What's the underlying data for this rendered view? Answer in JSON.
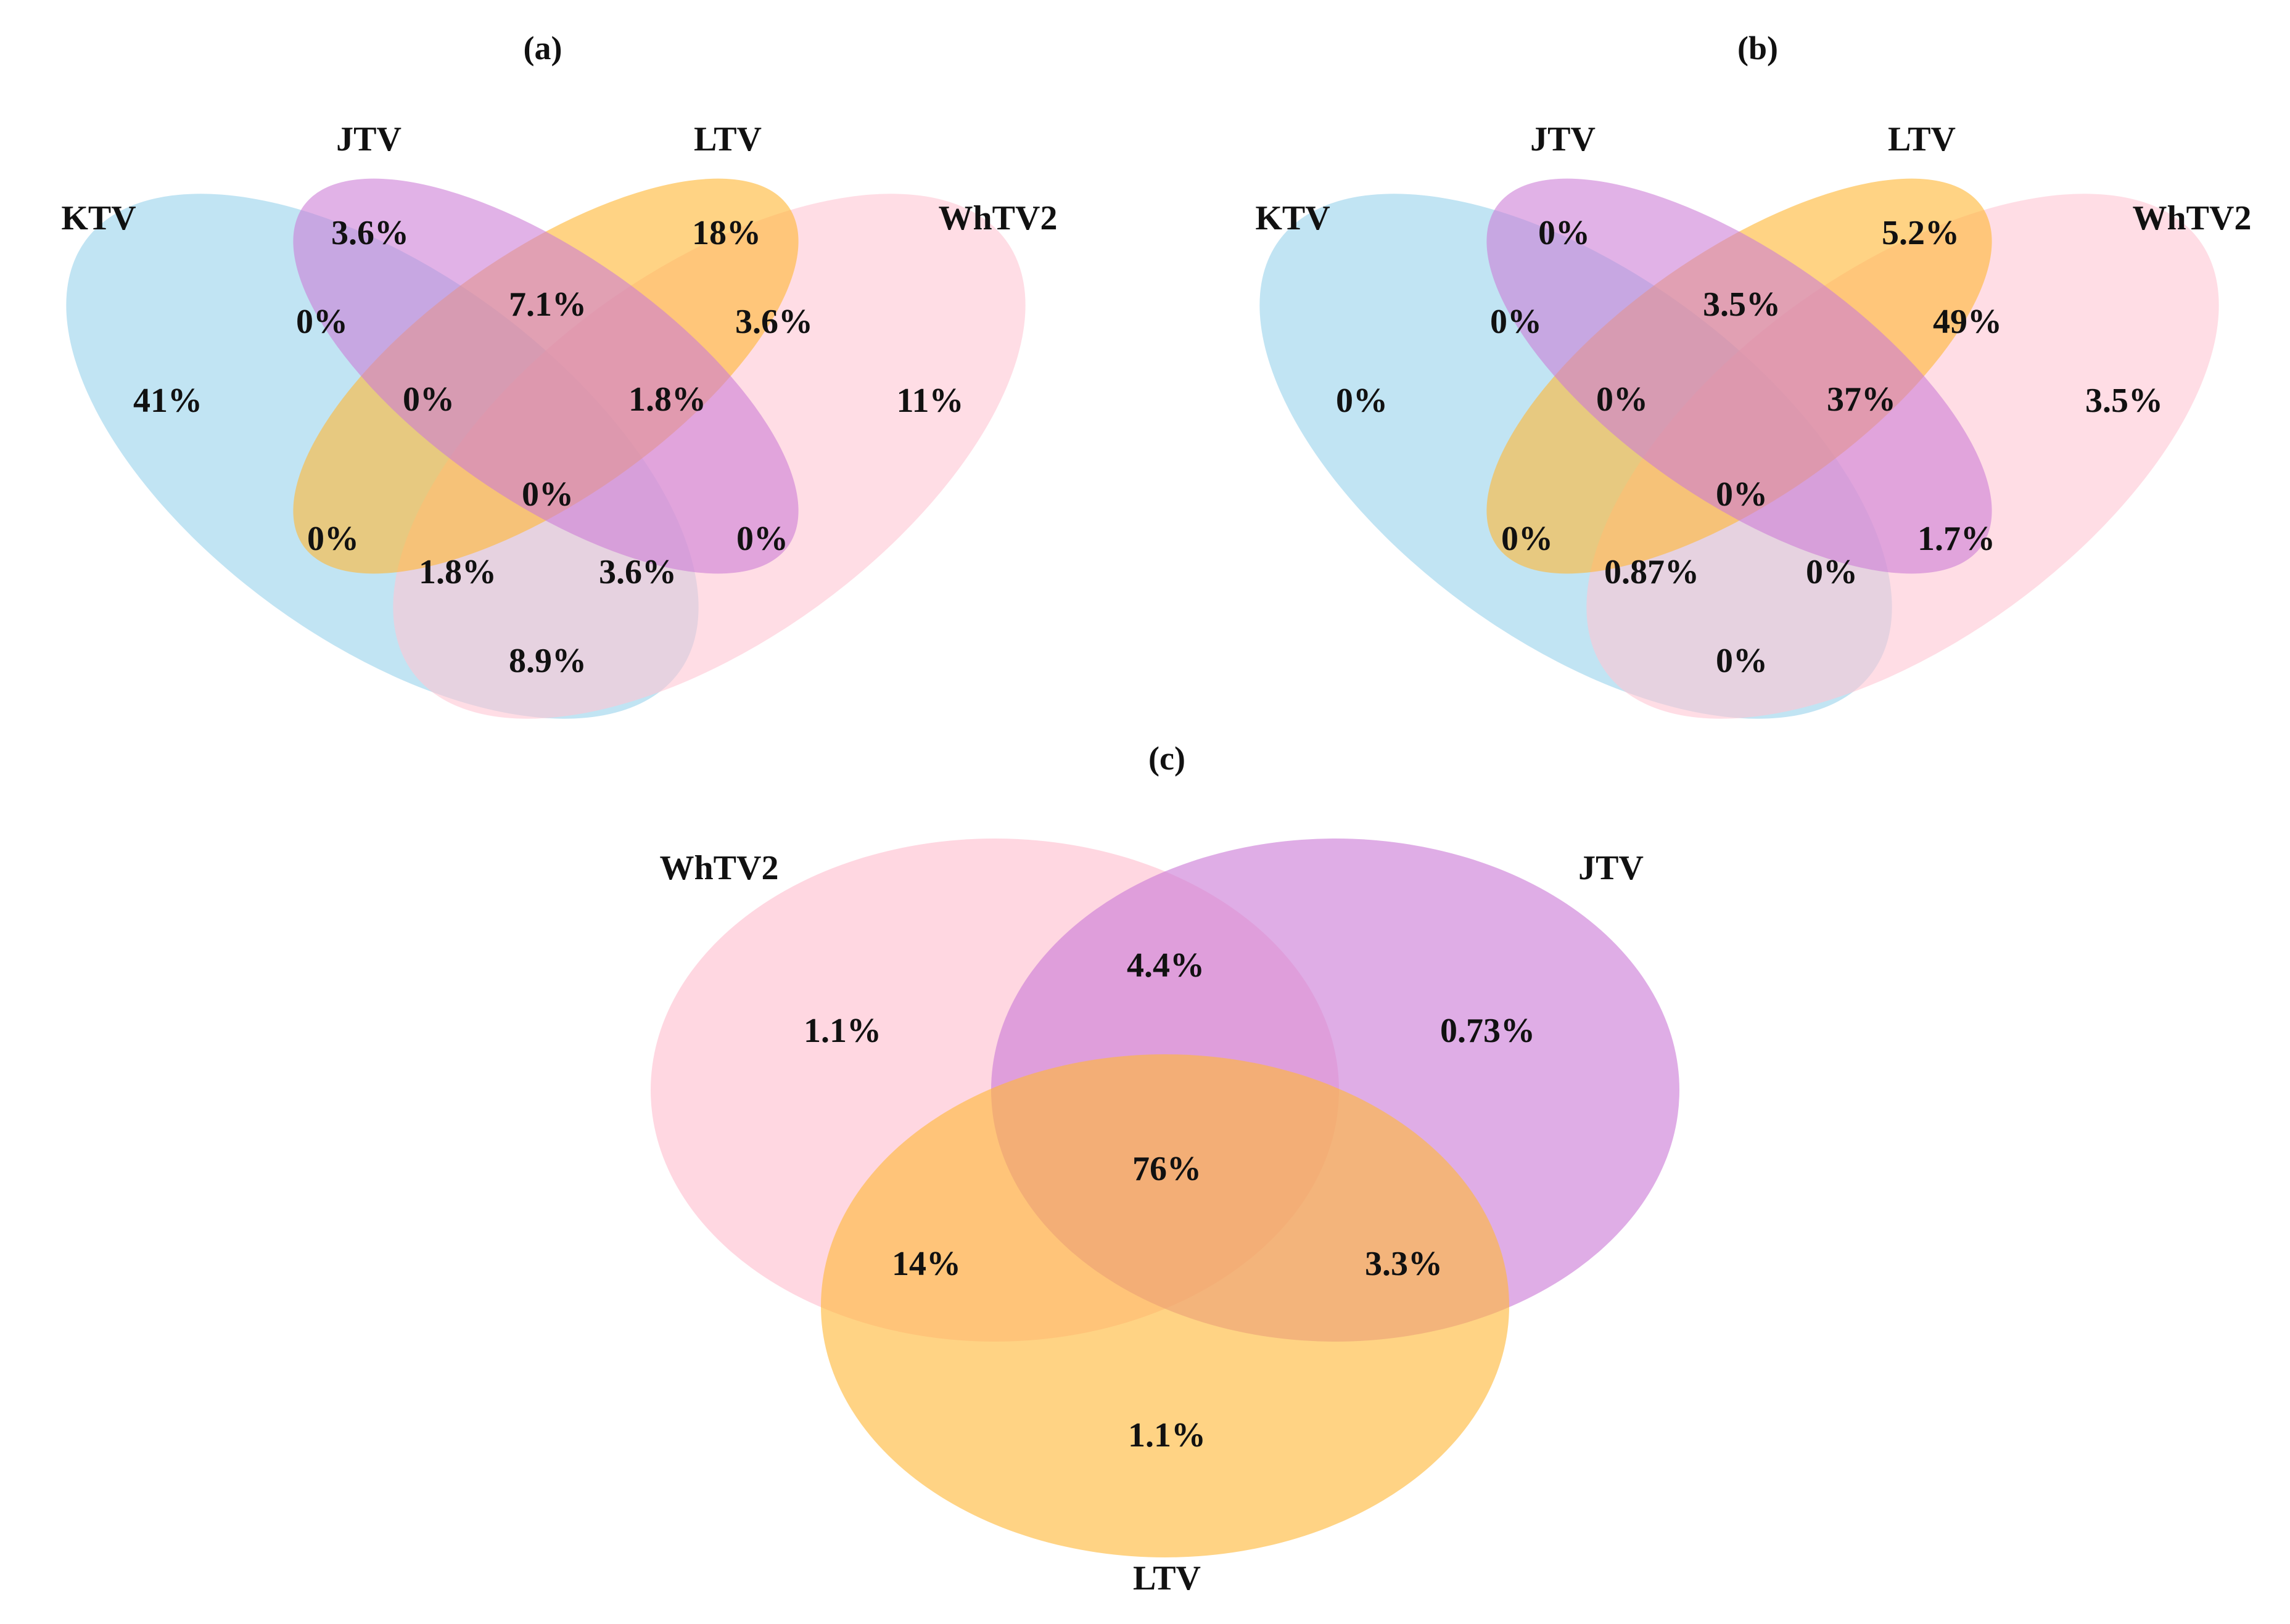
{
  "colors": {
    "KTV": "#a6d8ee",
    "JTV": "#cc7ad6",
    "LTV": "#ffb838",
    "WhTV2": "#ffc6d4"
  },
  "panels": {
    "a": {
      "label": "(a)",
      "sets": {
        "KTV": "KTV",
        "JTV": "JTV",
        "LTV": "LTV",
        "WhTV2": "WhTV2"
      },
      "regions": {
        "ktv_only": "41%",
        "jtv_only": "3.6%",
        "ltv_only": "18%",
        "whtv2_only": "11%",
        "ktv_jtv": "0%",
        "jtv_ltv": "7.1%",
        "ltv_whtv2": "3.6%",
        "ktv_jtv_ltv": "0%",
        "jtv_ltv_whtv2": "1.8%",
        "all": "0%",
        "ktv_ltv": "0%",
        "jtv_whtv2": "0%",
        "ktv_ltv_whtv2": "1.8%",
        "ktv_jtv_whtv2": "3.6%",
        "ktv_whtv2": "8.9%"
      }
    },
    "b": {
      "label": "(b)",
      "sets": {
        "KTV": "KTV",
        "JTV": "JTV",
        "LTV": "LTV",
        "WhTV2": "WhTV2"
      },
      "regions": {
        "ktv_only": "0%",
        "jtv_only": "0%",
        "ltv_only": "5.2%",
        "whtv2_only": "3.5%",
        "ktv_jtv": "0%",
        "jtv_ltv": "3.5%",
        "ltv_whtv2": "49%",
        "ktv_jtv_ltv": "0%",
        "jtv_ltv_whtv2": "37%",
        "all": "0%",
        "ktv_ltv": "0%",
        "jtv_whtv2": "1.7%",
        "ktv_ltv_whtv2": "0.87%",
        "ktv_jtv_whtv2": "0%",
        "ktv_whtv2": "0%"
      }
    },
    "c": {
      "label": "(c)",
      "sets": {
        "WhTV2": "WhTV2",
        "JTV": "JTV",
        "LTV": "LTV"
      },
      "regions": {
        "whtv2_only": "1.1%",
        "jtv_only": "0.73%",
        "whtv2_jtv": "4.4%",
        "all": "76%",
        "whtv2_ltv": "14%",
        "jtv_ltv": "3.3%",
        "ltv_only": "1.1%"
      }
    }
  }
}
